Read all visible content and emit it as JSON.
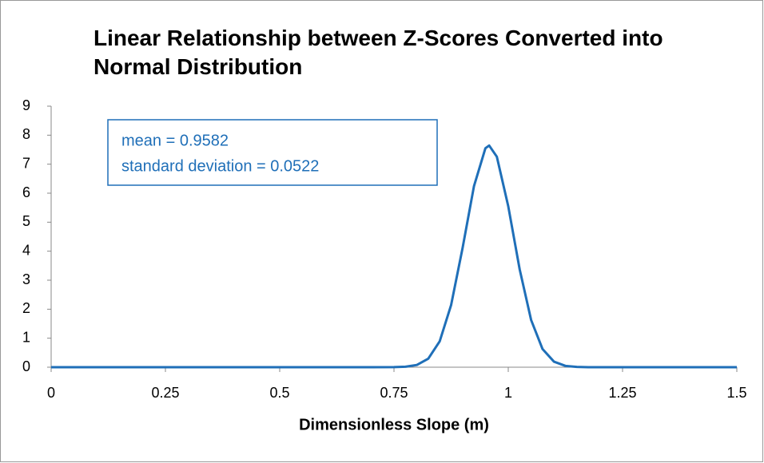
{
  "chart_data": {
    "type": "line",
    "title": "Linear Relationship between Z-Scores Converted into Normal Distribution",
    "x_label": "Dimensionless Slope (m)",
    "annotations": [
      "mean = 0.9582",
      "standard deviation = 0.0522"
    ],
    "x": [
      0,
      0.7,
      0.75,
      0.775,
      0.8,
      0.825,
      0.85,
      0.875,
      0.9,
      0.925,
      0.95,
      0.9582,
      0.975,
      1.0,
      1.025,
      1.05,
      1.075,
      1.1,
      1.125,
      1.15,
      1.175,
      1.2,
      1.5
    ],
    "series": [
      {
        "color": "#1f6fb8",
        "values": [
          0,
          0,
          0.003,
          0.016,
          0.077,
          0.294,
          0.892,
          2.146,
          4.105,
          6.244,
          7.549,
          7.643,
          7.257,
          5.547,
          3.37,
          1.627,
          0.625,
          0.191,
          0.046,
          0.009,
          0.001,
          0,
          0
        ]
      }
    ],
    "xlim": [
      0,
      1.5
    ],
    "xticks": [
      0,
      0.25,
      0.5,
      0.75,
      1,
      1.25,
      1.5
    ],
    "ylim": [
      0,
      9
    ],
    "yticks": [
      0,
      1,
      2,
      3,
      4,
      5,
      6,
      7,
      8,
      9
    ],
    "annotation_color": "#1f6fb8"
  }
}
